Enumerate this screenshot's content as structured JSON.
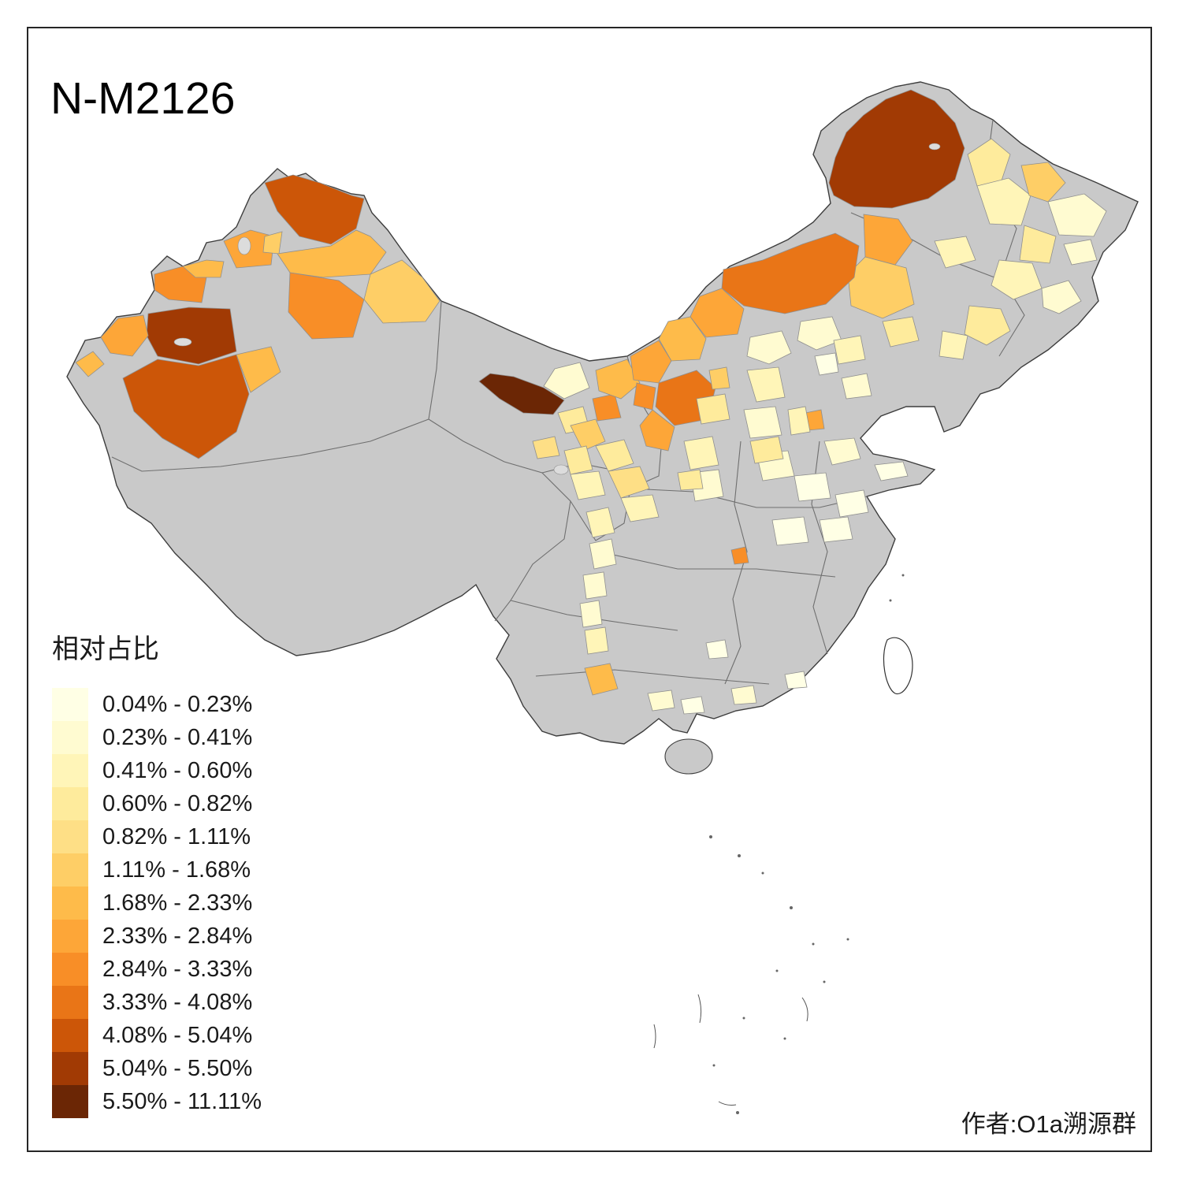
{
  "title": "N-M2126",
  "attribution": "作者:O1a溯源群",
  "legend": {
    "title": "相对占比",
    "items": [
      "0.04% - 0.23%",
      "0.23% - 0.41%",
      "0.41% - 0.60%",
      "0.60% - 0.82%",
      "0.82% - 1.11%",
      "1.11% - 1.68%",
      "1.68% - 2.33%",
      "2.33% - 2.84%",
      "2.84% - 3.33%",
      "3.33% - 4.08%",
      "4.08% - 5.04%",
      "5.04% - 5.50%",
      "5.50% - 11.11%"
    ],
    "colors": [
      "#FFFFE5",
      "#FFFBD1",
      "#FFF5B8",
      "#FEEB9C",
      "#FEDF86",
      "#FECE66",
      "#FEBB4A",
      "#FDA638",
      "#F88E27",
      "#E97517",
      "#CC5608",
      "#A13A04",
      "#6B2605"
    ]
  },
  "map": {
    "base_color": "#C9C9C9",
    "outline_color": "#3D3D3D",
    "province_border_color": "#6F6F6F",
    "background": "#FFFFFF"
  }
}
